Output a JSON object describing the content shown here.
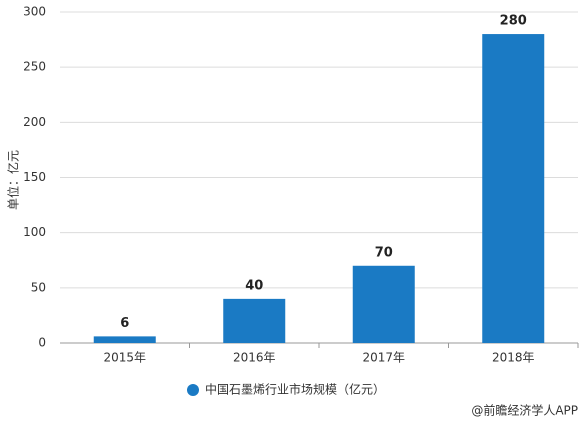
{
  "chart_data": {
    "type": "bar",
    "y_label": "单位：亿元",
    "categories": [
      "2015年",
      "2016年",
      "2017年",
      "2018年"
    ],
    "series": [
      {
        "name": "中国石墨烯行业市场规模（亿元）",
        "color": "#1a7ac4",
        "values": [
          6,
          40,
          70,
          280
        ]
      }
    ],
    "ylim": [
      0,
      300
    ],
    "yticks": [
      0,
      50,
      100,
      150,
      200,
      250,
      300
    ],
    "grid": true,
    "source": "@前瞻经济学人APP"
  }
}
